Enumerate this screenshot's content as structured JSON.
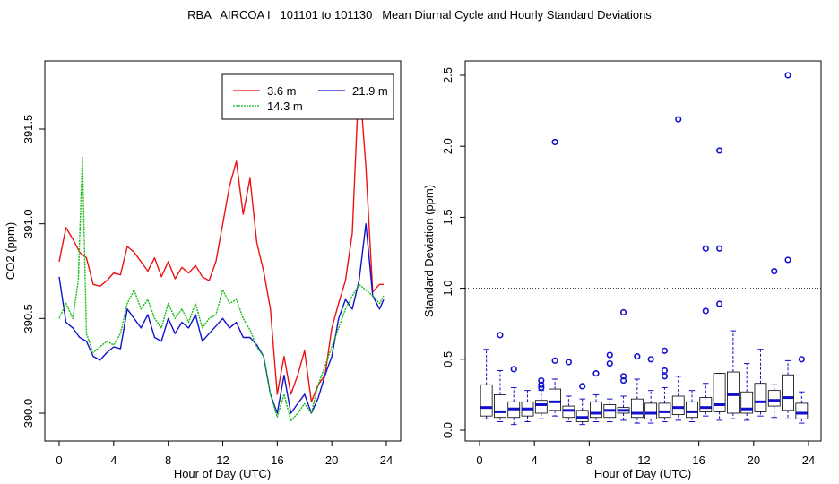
{
  "title": "RBA   AIRCOA I   101101 to 101130   Mean Diurnal Cycle and Hourly Standard Deviations",
  "chart_data": [
    {
      "type": "line",
      "xlabel": "Hour of Day (UTC)",
      "ylabel": "CO2 (ppm)",
      "xlim": [
        0,
        24
      ],
      "ylim": [
        389.95,
        391.85
      ],
      "xticks": [
        "0",
        "4",
        "8",
        "12",
        "16",
        "20",
        "24"
      ],
      "yticks": [
        "390.0",
        "390.5",
        "391.0",
        "391.5"
      ],
      "legend": {
        "placement": "top-right"
      },
      "series": [
        {
          "name": "3.6 m",
          "color": "#ee1111",
          "x": [
            0,
            0.5,
            1,
            1.5,
            2,
            2.5,
            3,
            3.5,
            4,
            4.5,
            5,
            5.5,
            6,
            6.5,
            7,
            7.5,
            8,
            8.5,
            9,
            9.5,
            10,
            10.5,
            11,
            11.5,
            12,
            12.5,
            13,
            13.5,
            14,
            14.5,
            15,
            15.5,
            16,
            16.5,
            17,
            17.5,
            18,
            18.5,
            19,
            19.5,
            20,
            20.5,
            21,
            21.5,
            22,
            22.5,
            23,
            23.5,
            23.8
          ],
          "y": [
            390.8,
            390.98,
            390.92,
            390.85,
            390.82,
            390.68,
            390.67,
            390.7,
            390.74,
            390.73,
            390.88,
            390.85,
            390.8,
            390.75,
            390.82,
            390.72,
            390.8,
            390.71,
            390.77,
            390.74,
            390.78,
            390.72,
            390.7,
            390.8,
            391.0,
            391.2,
            391.33,
            391.05,
            391.24,
            390.9,
            390.75,
            390.55,
            390.1,
            390.3,
            390.1,
            390.2,
            390.33,
            390.06,
            390.15,
            390.2,
            390.45,
            390.58,
            390.7,
            390.95,
            391.78,
            391.3,
            390.64,
            390.68,
            390.68
          ]
        },
        {
          "name": "21.9 m",
          "color": "#1111cc",
          "x": [
            0,
            0.5,
            1,
            1.5,
            2,
            2.5,
            3,
            3.5,
            4,
            4.5,
            5,
            5.5,
            6,
            6.5,
            7,
            7.5,
            8,
            8.5,
            9,
            9.5,
            10,
            10.5,
            11,
            11.5,
            12,
            12.5,
            13,
            13.5,
            14,
            14.5,
            15,
            15.5,
            16,
            16.5,
            17,
            17.5,
            18,
            18.5,
            19,
            19.5,
            20,
            20.5,
            21,
            21.5,
            22,
            22.5,
            23,
            23.5,
            23.8
          ],
          "y": [
            390.72,
            390.48,
            390.45,
            390.4,
            390.38,
            390.3,
            390.28,
            390.32,
            390.35,
            390.34,
            390.55,
            390.5,
            390.45,
            390.52,
            390.4,
            390.38,
            390.5,
            390.42,
            390.48,
            390.45,
            390.52,
            390.38,
            390.42,
            390.46,
            390.5,
            390.45,
            390.48,
            390.4,
            390.4,
            390.36,
            390.3,
            390.1,
            390.0,
            390.2,
            390.0,
            390.05,
            390.1,
            390.0,
            390.08,
            390.2,
            390.3,
            390.5,
            390.6,
            390.55,
            390.7,
            391.0,
            390.62,
            390.55,
            390.6
          ]
        },
        {
          "name": "14.3 m",
          "color": "#11bb11",
          "dashed": true,
          "x": [
            0,
            0.5,
            1,
            1.4,
            1.7,
            2,
            2.5,
            3,
            3.5,
            4,
            4.5,
            5,
            5.5,
            6,
            6.5,
            7,
            7.5,
            8,
            8.5,
            9,
            9.5,
            10,
            10.5,
            11,
            11.5,
            12,
            12.5,
            13,
            13.5,
            14,
            14.5,
            15,
            15.5,
            16,
            16.5,
            17,
            17.5,
            18,
            18.5,
            19,
            19.5,
            20,
            20.5,
            21,
            21.5,
            22,
            22.5,
            23,
            23.5,
            23.8
          ],
          "y": [
            390.5,
            390.58,
            390.5,
            390.7,
            391.35,
            390.42,
            390.32,
            390.35,
            390.38,
            390.36,
            390.42,
            390.58,
            390.65,
            390.55,
            390.6,
            390.5,
            390.45,
            390.58,
            390.5,
            390.55,
            390.48,
            390.58,
            390.45,
            390.5,
            390.52,
            390.65,
            390.58,
            390.6,
            390.5,
            390.44,
            390.35,
            390.3,
            390.1,
            389.98,
            390.1,
            389.96,
            390.0,
            390.05,
            390.0,
            390.15,
            390.25,
            390.35,
            390.45,
            390.55,
            390.62,
            390.68,
            390.65,
            390.62,
            390.58,
            390.62
          ]
        }
      ]
    },
    {
      "type": "box",
      "xlabel": "Hour of Day (UTC)",
      "ylabel": "Standard Deviation (ppm)",
      "xlim": [
        0,
        24
      ],
      "ylim": [
        -0.03,
        2.6
      ],
      "xticks": [
        "0",
        "4",
        "8",
        "12",
        "16",
        "20",
        "24"
      ],
      "yticks": [
        "0.0",
        "0.5",
        "1.0",
        "1.5",
        "2.0",
        "2.5"
      ],
      "reference_line": 1.0,
      "boxes": [
        {
          "hour": 0.5,
          "min": 0.08,
          "q1": 0.1,
          "median": 0.16,
          "q3": 0.32,
          "max": 0.57,
          "outliers": []
        },
        {
          "hour": 1.5,
          "min": 0.06,
          "q1": 0.09,
          "median": 0.13,
          "q3": 0.25,
          "max": 0.42,
          "outliers": [
            0.67
          ]
        },
        {
          "hour": 2.5,
          "min": 0.04,
          "q1": 0.09,
          "median": 0.15,
          "q3": 0.2,
          "max": 0.3,
          "outliers": [
            0.43
          ]
        },
        {
          "hour": 3.5,
          "min": 0.06,
          "q1": 0.1,
          "median": 0.15,
          "q3": 0.2,
          "max": 0.28,
          "outliers": []
        },
        {
          "hour": 4.5,
          "min": 0.08,
          "q1": 0.12,
          "median": 0.18,
          "q3": 0.21,
          "max": 0.28,
          "outliers": [
            0.3,
            0.32,
            0.35
          ]
        },
        {
          "hour": 5.5,
          "min": 0.1,
          "q1": 0.14,
          "median": 0.2,
          "q3": 0.29,
          "max": 0.36,
          "outliers": [
            0.49,
            2.03
          ]
        },
        {
          "hour": 6.5,
          "min": 0.06,
          "q1": 0.09,
          "median": 0.14,
          "q3": 0.17,
          "max": 0.24,
          "outliers": [
            0.48
          ]
        },
        {
          "hour": 7.5,
          "min": 0.04,
          "q1": 0.06,
          "median": 0.09,
          "q3": 0.14,
          "max": 0.22,
          "outliers": [
            0.31
          ]
        },
        {
          "hour": 8.5,
          "min": 0.06,
          "q1": 0.09,
          "median": 0.12,
          "q3": 0.2,
          "max": 0.25,
          "outliers": [
            0.4
          ]
        },
        {
          "hour": 9.5,
          "min": 0.06,
          "q1": 0.09,
          "median": 0.14,
          "q3": 0.18,
          "max": 0.22,
          "outliers": [
            0.47,
            0.53
          ]
        },
        {
          "hour": 10.5,
          "min": 0.07,
          "q1": 0.12,
          "median": 0.14,
          "q3": 0.16,
          "max": 0.24,
          "outliers": [
            0.35,
            0.38,
            0.83
          ]
        },
        {
          "hour": 11.5,
          "min": 0.05,
          "q1": 0.09,
          "median": 0.12,
          "q3": 0.22,
          "max": 0.36,
          "outliers": [
            0.52
          ]
        },
        {
          "hour": 12.5,
          "min": 0.05,
          "q1": 0.08,
          "median": 0.12,
          "q3": 0.19,
          "max": 0.28,
          "outliers": [
            0.5
          ]
        },
        {
          "hour": 13.5,
          "min": 0.06,
          "q1": 0.09,
          "median": 0.13,
          "q3": 0.19,
          "max": 0.3,
          "outliers": [
            0.38,
            0.42,
            0.56
          ]
        },
        {
          "hour": 14.5,
          "min": 0.07,
          "q1": 0.11,
          "median": 0.16,
          "q3": 0.24,
          "max": 0.38,
          "outliers": [
            2.19
          ]
        },
        {
          "hour": 15.5,
          "min": 0.06,
          "q1": 0.09,
          "median": 0.13,
          "q3": 0.2,
          "max": 0.28,
          "outliers": []
        },
        {
          "hour": 16.5,
          "min": 0.1,
          "q1": 0.13,
          "median": 0.16,
          "q3": 0.23,
          "max": 0.33,
          "outliers": [
            0.84,
            1.28
          ]
        },
        {
          "hour": 17.5,
          "min": 0.07,
          "q1": 0.13,
          "median": 0.18,
          "q3": 0.4,
          "max": 0.4,
          "outliers": [
            0.89,
            1.28,
            1.97
          ]
        },
        {
          "hour": 18.5,
          "min": 0.08,
          "q1": 0.12,
          "median": 0.25,
          "q3": 0.41,
          "max": 0.7,
          "outliers": []
        },
        {
          "hour": 19.5,
          "min": 0.07,
          "q1": 0.12,
          "median": 0.15,
          "q3": 0.27,
          "max": 0.47,
          "outliers": []
        },
        {
          "hour": 20.5,
          "min": 0.1,
          "q1": 0.13,
          "median": 0.2,
          "q3": 0.33,
          "max": 0.57,
          "outliers": []
        },
        {
          "hour": 21.5,
          "min": 0.09,
          "q1": 0.17,
          "median": 0.21,
          "q3": 0.28,
          "max": 0.32,
          "outliers": [
            1.12
          ]
        },
        {
          "hour": 22.5,
          "min": 0.08,
          "q1": 0.14,
          "median": 0.23,
          "q3": 0.39,
          "max": 0.49,
          "outliers": [
            1.2,
            2.5
          ]
        },
        {
          "hour": 23.5,
          "min": 0.05,
          "q1": 0.08,
          "median": 0.12,
          "q3": 0.19,
          "max": 0.27,
          "outliers": [
            0.5
          ]
        }
      ]
    }
  ]
}
